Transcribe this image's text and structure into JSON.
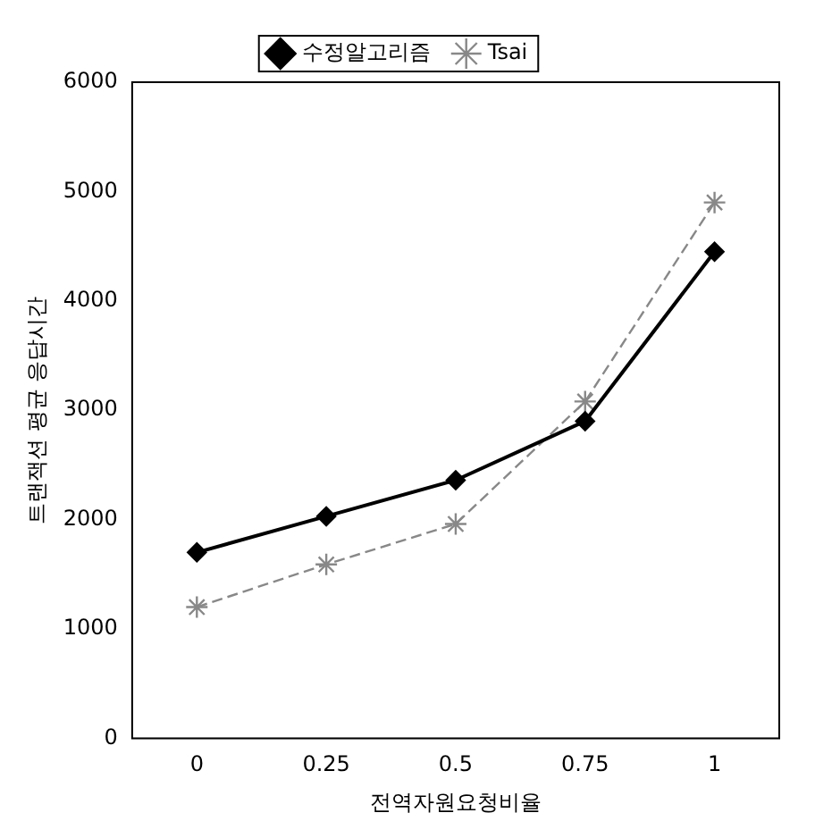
{
  "chart_data": {
    "type": "line",
    "xlabel": "전역자원요청비율",
    "ylabel": "트랜잭션 평균 응답시간",
    "categories": [
      "0",
      "0.25",
      "0.5",
      "0.75",
      "1"
    ],
    "series": [
      {
        "name": "수정알고리즘",
        "color": "#000000",
        "marker": "diamond",
        "line_style": "solid",
        "values": [
          1700,
          2030,
          2360,
          2900,
          4450
        ]
      },
      {
        "name": "Tsai",
        "color": "#888888",
        "marker": "cross",
        "line_style": "dashed",
        "values": [
          1200,
          1590,
          1960,
          3080,
          4900
        ]
      }
    ],
    "ylim": [
      0,
      6000
    ],
    "yticks": [
      0,
      1000,
      2000,
      3000,
      4000,
      5000,
      6000
    ],
    "grid": false,
    "legend": "top"
  }
}
